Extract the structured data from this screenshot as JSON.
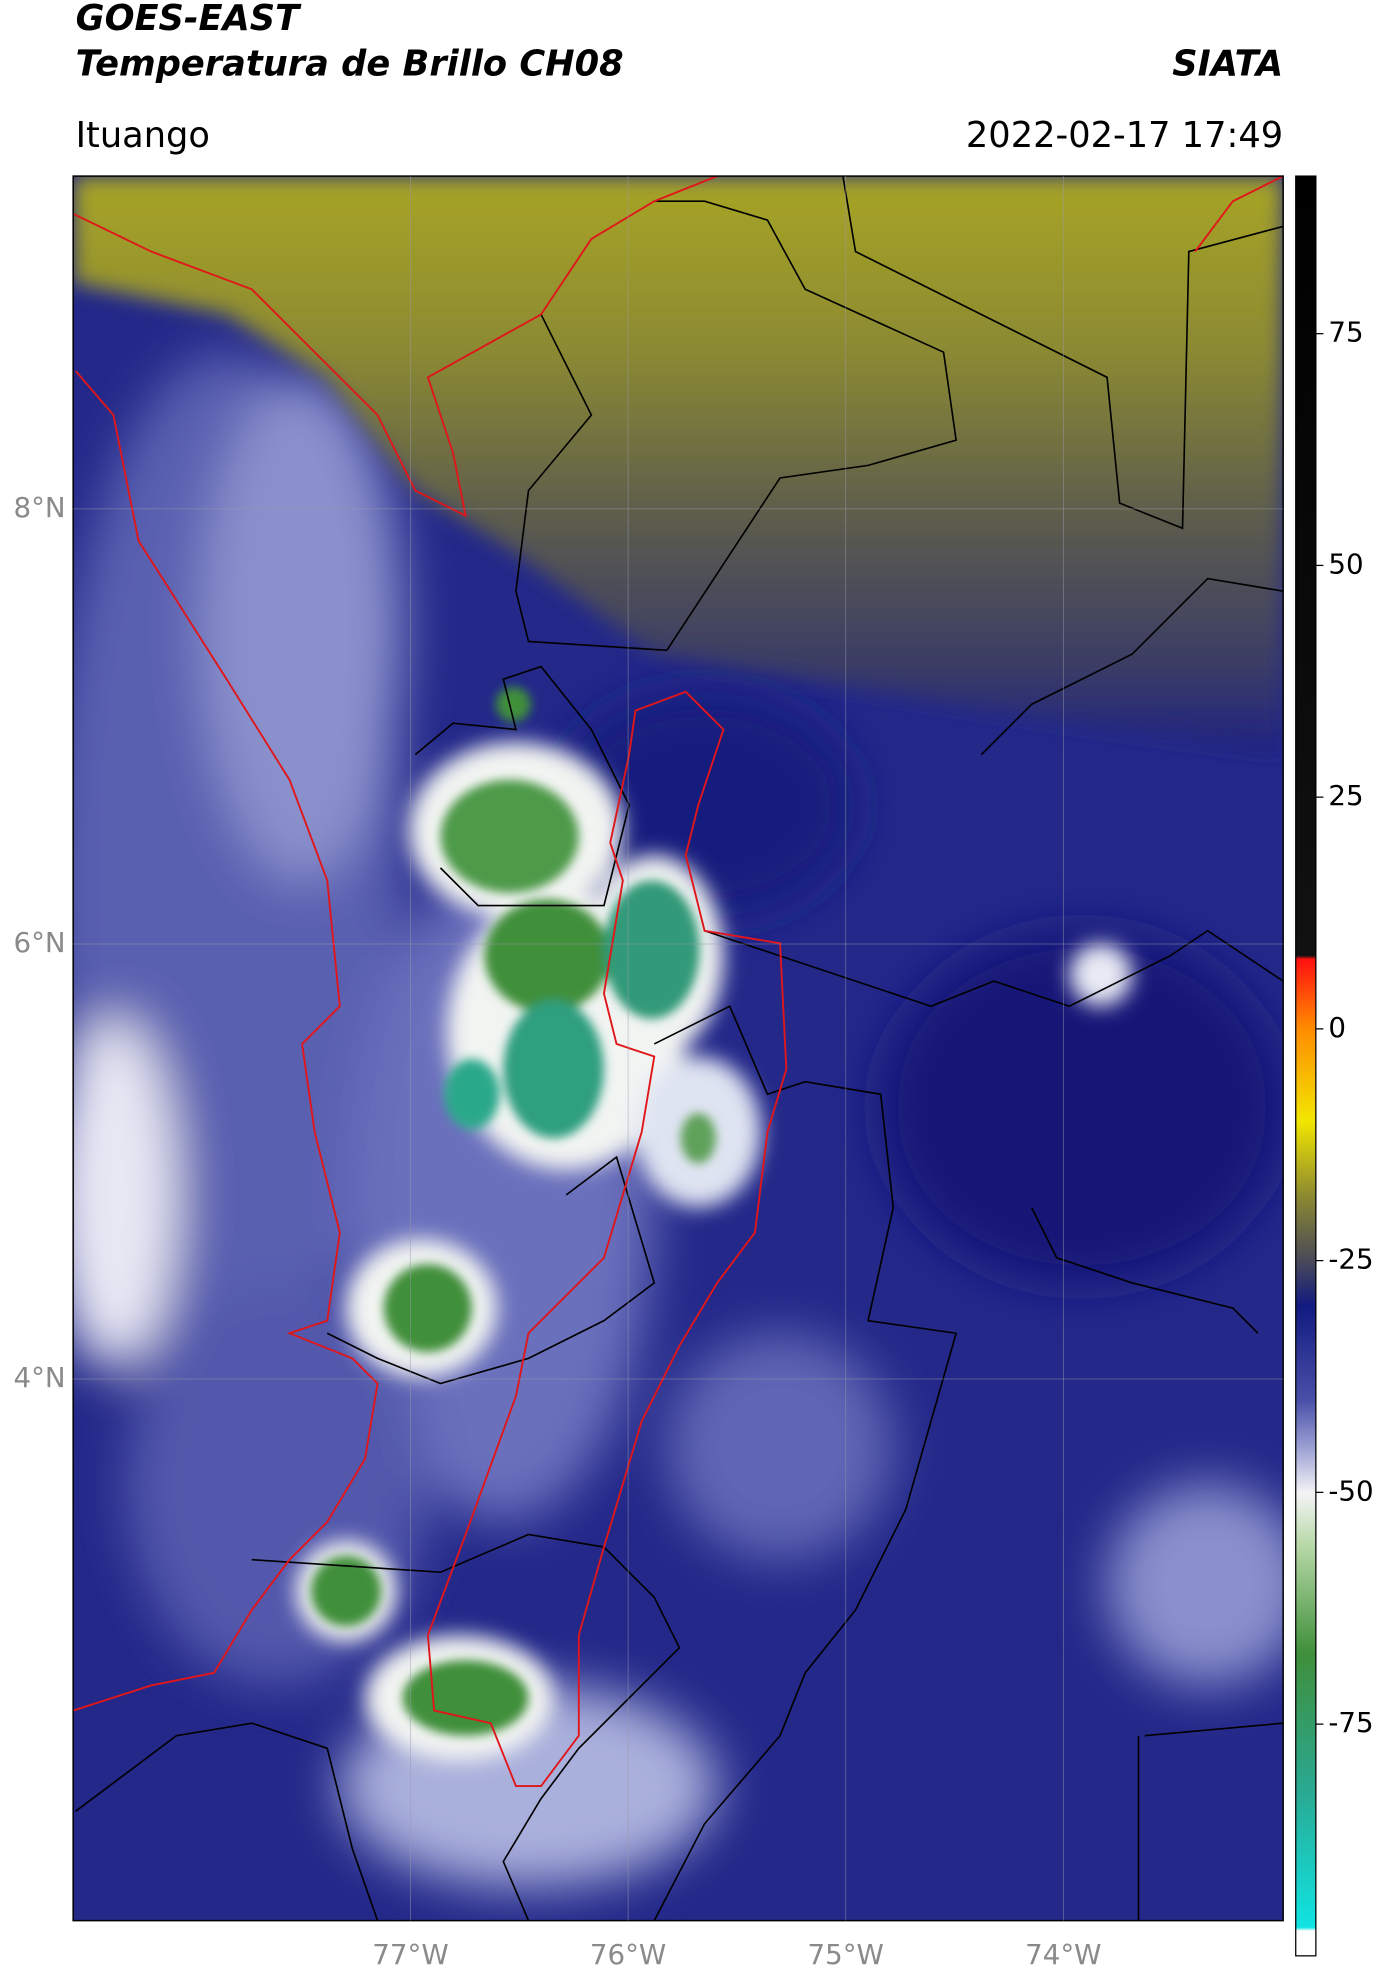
{
  "header": {
    "title": "GOES-EAST",
    "subtitle": "Temperatura de Brillo CH08",
    "source": "SIATA",
    "location": "Ituango",
    "datetime": "2022-02-17 17:49"
  },
  "map": {
    "xlim": [
      -78.55,
      -72.99
    ],
    "ylim": [
      1.51,
      9.53
    ],
    "xticks": [
      {
        "value": -77,
        "label": "77°W"
      },
      {
        "value": -76,
        "label": "76°W"
      },
      {
        "value": -75,
        "label": "75°W"
      },
      {
        "value": -74,
        "label": "74°W"
      }
    ],
    "yticks": [
      {
        "value": 8,
        "label": "8°N"
      },
      {
        "value": 6,
        "label": "6°N"
      },
      {
        "value": 4,
        "label": "4°N"
      }
    ]
  },
  "colorbar": {
    "lim": [
      -100,
      92
    ],
    "ticks": [
      75,
      50,
      25,
      0,
      -25,
      -50,
      -75
    ]
  }
}
